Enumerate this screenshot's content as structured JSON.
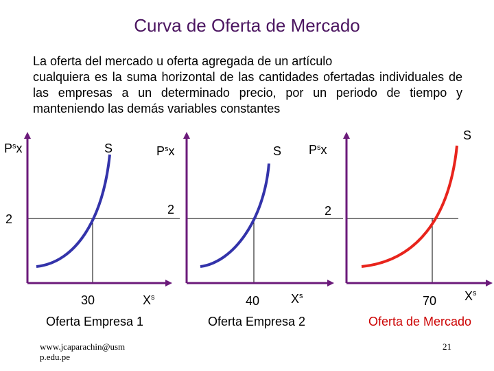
{
  "title": "Curva de Oferta de  Mercado",
  "description": {
    "line1": "La oferta del mercado u oferta agregada de un artículo",
    "rest": "cualquiera es la suma horizontal de las cantidades ofertadas individuales de las empresas a un determinado precio, por un periodo de tiempo y manteniendo las demás variables constantes"
  },
  "panels": [
    {
      "y_label": "Psx",
      "curve_label": "S",
      "price": "2",
      "quantity": "30",
      "x_label": "Xs",
      "caption": "Oferta Empresa  1",
      "curve_color": "#3333aa",
      "caption_color": "#000000"
    },
    {
      "y_label": "Psx",
      "curve_label": "S",
      "price": "2",
      "quantity": "40",
      "x_label": "Xs",
      "caption": "Oferta Empresa  2",
      "curve_color": "#3333aa",
      "caption_color": "#000000"
    },
    {
      "y_label": "Psx",
      "curve_label": "S",
      "price": "2",
      "quantity": "70",
      "x_label": "Xs",
      "caption": "Oferta de Mercado",
      "curve_color": "#e8241c",
      "caption_color": "#cc0000"
    }
  ],
  "colors": {
    "axis": "#6b1a7a",
    "title": "#4b1560"
  },
  "footer": {
    "source_line1": "www.jcaparachin@usm",
    "source_line2": "p.edu.pe",
    "page_number": "21"
  }
}
